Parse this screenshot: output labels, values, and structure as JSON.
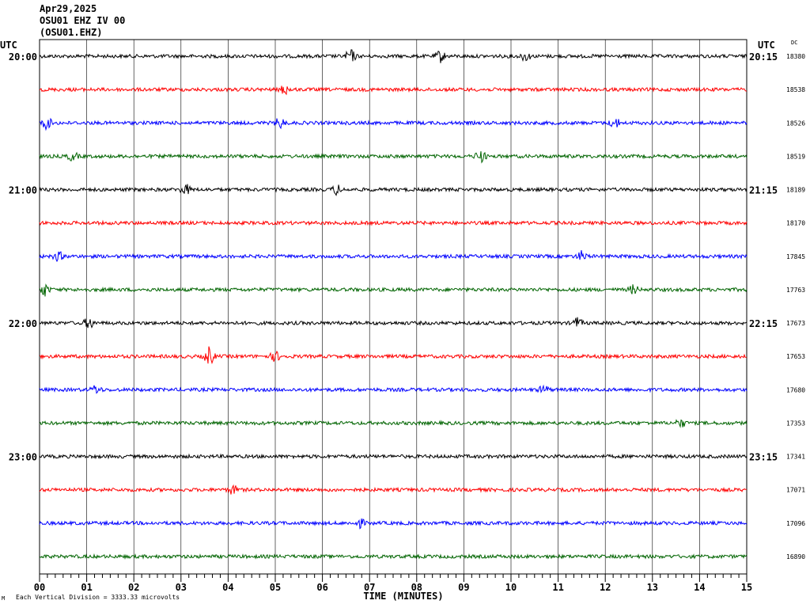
{
  "header": {
    "date": "Apr29,2025",
    "station": "OSU01 EHZ IV 00",
    "channel": "(OSU01.EHZ)"
  },
  "labels": {
    "utc_left": "UTC",
    "utc_right": "UTC",
    "dc": "DC",
    "xlabel": "TIME (MINUTES)",
    "footer_note": "Each Vertical Division = 3333.33 microvolts",
    "footer_mark": "M"
  },
  "chart_data": {
    "type": "line",
    "title": "",
    "xlabel": "TIME (MINUTES)",
    "xlim": [
      0,
      15
    ],
    "x_ticks": [
      "00",
      "01",
      "02",
      "03",
      "04",
      "05",
      "06",
      "07",
      "08",
      "09",
      "10",
      "11",
      "12",
      "13",
      "14",
      "15"
    ],
    "trace_colors": [
      "#000000",
      "#ff0000",
      "#0000ff",
      "#006400"
    ],
    "traces": [
      {
        "left_time": "20:00",
        "right_time": "20:15",
        "dc": "18380",
        "events": [
          {
            "minute": 6.6,
            "amp": 1.8
          },
          {
            "minute": 8.5,
            "amp": 1.6
          },
          {
            "minute": 10.3,
            "amp": 1.2
          }
        ]
      },
      {
        "left_time": "",
        "right_time": "",
        "dc": "18538",
        "events": [
          {
            "minute": 5.2,
            "amp": 1.3
          }
        ]
      },
      {
        "left_time": "",
        "right_time": "",
        "dc": "18526",
        "events": [
          {
            "minute": 0.15,
            "amp": 1.6
          },
          {
            "minute": 5.1,
            "amp": 1.4
          },
          {
            "minute": 12.2,
            "amp": 1.4
          }
        ]
      },
      {
        "left_time": "",
        "right_time": "",
        "dc": "18519",
        "events": [
          {
            "minute": 0.7,
            "amp": 1.2
          },
          {
            "minute": 9.35,
            "amp": 1.8
          }
        ]
      },
      {
        "left_time": "21:00",
        "right_time": "21:15",
        "dc": "18189",
        "events": [
          {
            "minute": 3.1,
            "amp": 1.4
          },
          {
            "minute": 6.3,
            "amp": 1.3
          }
        ]
      },
      {
        "left_time": "",
        "right_time": "",
        "dc": "18170",
        "events": []
      },
      {
        "left_time": "",
        "right_time": "",
        "dc": "17845",
        "events": [
          {
            "minute": 0.4,
            "amp": 1.2
          },
          {
            "minute": 11.5,
            "amp": 1.3
          }
        ]
      },
      {
        "left_time": "",
        "right_time": "",
        "dc": "17763",
        "events": [
          {
            "minute": 0.1,
            "amp": 1.8
          },
          {
            "minute": 12.6,
            "amp": 1.2
          }
        ]
      },
      {
        "left_time": "22:00",
        "right_time": "22:15",
        "dc": "17673",
        "events": [
          {
            "minute": 1.05,
            "amp": 1.5
          },
          {
            "minute": 11.4,
            "amp": 1.4
          }
        ]
      },
      {
        "left_time": "",
        "right_time": "",
        "dc": "17653",
        "events": [
          {
            "minute": 3.6,
            "amp": 2.6
          },
          {
            "minute": 5.0,
            "amp": 1.3
          }
        ]
      },
      {
        "left_time": "",
        "right_time": "",
        "dc": "17680",
        "events": [
          {
            "minute": 1.2,
            "amp": 1.2
          },
          {
            "minute": 10.7,
            "amp": 1.1
          }
        ]
      },
      {
        "left_time": "",
        "right_time": "",
        "dc": "17353",
        "events": [
          {
            "minute": 13.6,
            "amp": 1.1
          }
        ]
      },
      {
        "left_time": "23:00",
        "right_time": "23:15",
        "dc": "17341",
        "events": []
      },
      {
        "left_time": "",
        "right_time": "",
        "dc": "17071",
        "events": [
          {
            "minute": 4.1,
            "amp": 1.2
          }
        ]
      },
      {
        "left_time": "",
        "right_time": "",
        "dc": "17096",
        "events": [
          {
            "minute": 6.8,
            "amp": 1.1
          }
        ]
      },
      {
        "left_time": "",
        "right_time": "",
        "dc": "16890",
        "events": []
      }
    ]
  }
}
